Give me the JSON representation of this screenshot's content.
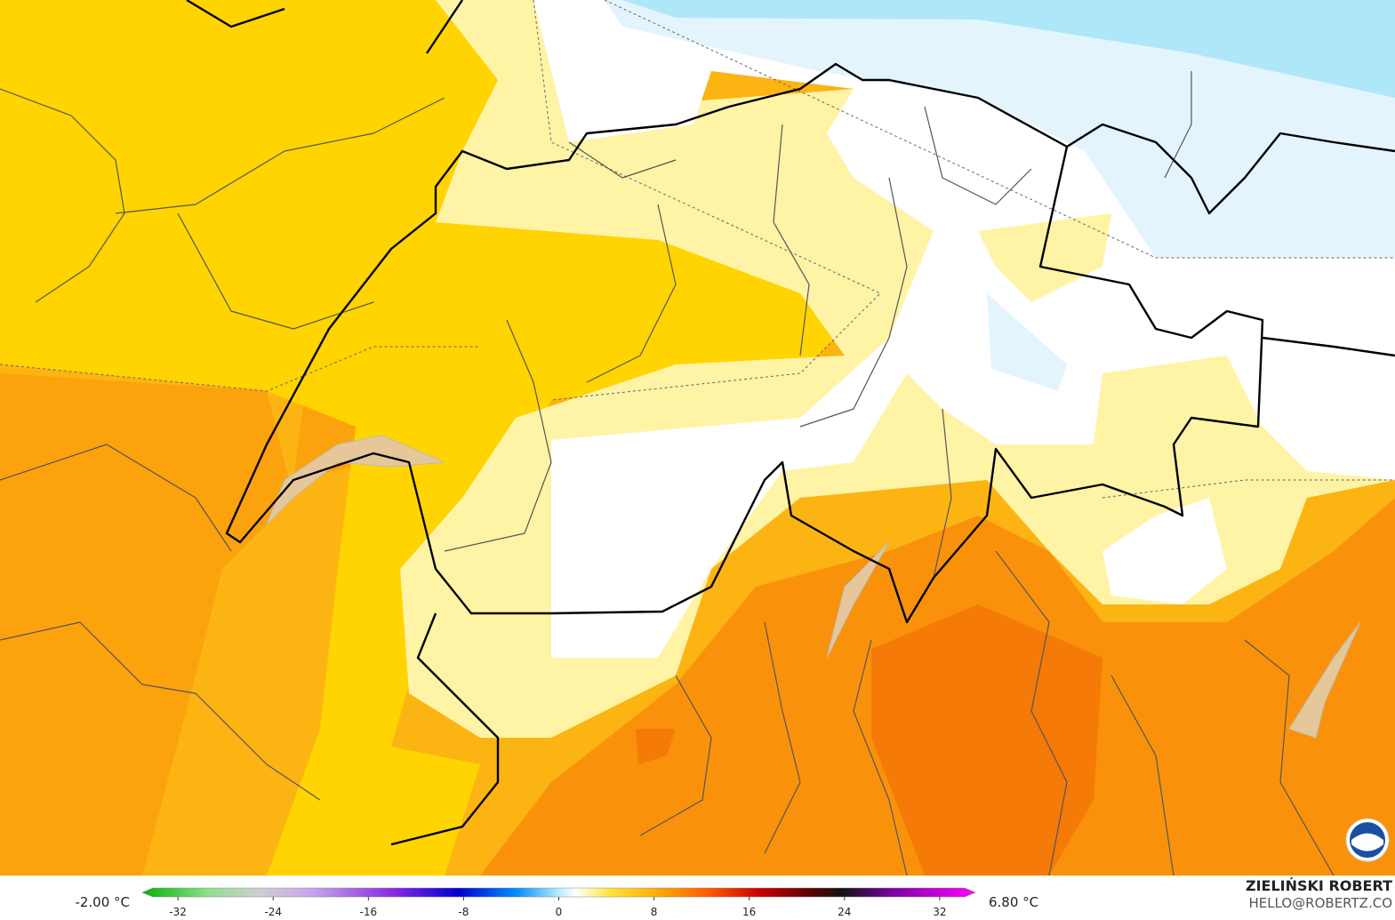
{
  "legend": {
    "min_label": "-2.00 °C",
    "max_label": "6.80 °C",
    "range": [
      -35,
      35
    ],
    "ticks": [
      -32,
      -24,
      -16,
      -8,
      0,
      8,
      16,
      24,
      32
    ]
  },
  "credit": {
    "name": "ZIELIŃSKI ROBERT",
    "email": "HELLO@ROBERTZ.CO"
  }
}
